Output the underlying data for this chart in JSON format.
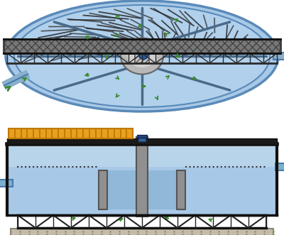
{
  "bg_color": "#ffffff",
  "light_blue": "#a8c8e8",
  "lighter_blue": "#c0d8f0",
  "mid_blue": "#8ab8d8",
  "dark_blue": "#5a8ab8",
  "gray_dark": "#444444",
  "gray_mid": "#888888",
  "gray_light": "#c0c0c0",
  "gray_fill": "#aaaaaa",
  "black": "#111111",
  "green_arrow": "#3a8a2a",
  "orange": "#e8a020",
  "orange_dark": "#c07800",
  "steel_gray": "#707888",
  "concrete": "#c0b898",
  "truss_color": "#222222",
  "walkway_fill": "#787878"
}
